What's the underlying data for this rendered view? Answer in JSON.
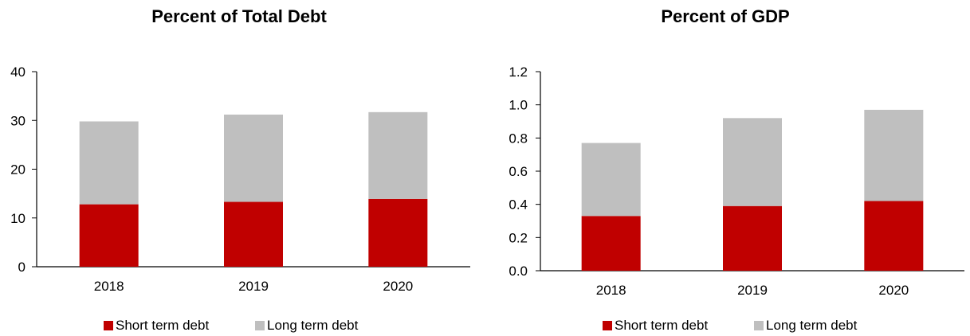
{
  "colors": {
    "short_term": "#c00000",
    "long_term": "#bfbfbf",
    "axis": "#000000"
  },
  "chart_data": [
    {
      "type": "bar",
      "stacked": true,
      "title": "Percent of Total Debt",
      "categories": [
        "2018",
        "2019",
        "2020"
      ],
      "series": [
        {
          "name": "Short term debt",
          "values": [
            12.8,
            13.3,
            13.9
          ]
        },
        {
          "name": "Long term debt",
          "values": [
            17.0,
            17.9,
            17.8
          ]
        }
      ],
      "ylim": [
        0,
        40
      ],
      "yticks": [
        "0",
        "10",
        "20",
        "30",
        "40"
      ],
      "legend": "bottom",
      "grid": false
    },
    {
      "type": "bar",
      "stacked": true,
      "title": "Percent of GDP",
      "categories": [
        "2018",
        "2019",
        "2020"
      ],
      "series": [
        {
          "name": "Short term debt",
          "values": [
            0.33,
            0.39,
            0.42
          ]
        },
        {
          "name": "Long term debt",
          "values": [
            0.44,
            0.53,
            0.55
          ]
        }
      ],
      "ylim": [
        0,
        1.2
      ],
      "yticks": [
        "0.0",
        "0.2",
        "0.4",
        "0.6",
        "0.8",
        "1.0",
        "1.2"
      ],
      "legend": "bottom",
      "grid": false
    }
  ]
}
